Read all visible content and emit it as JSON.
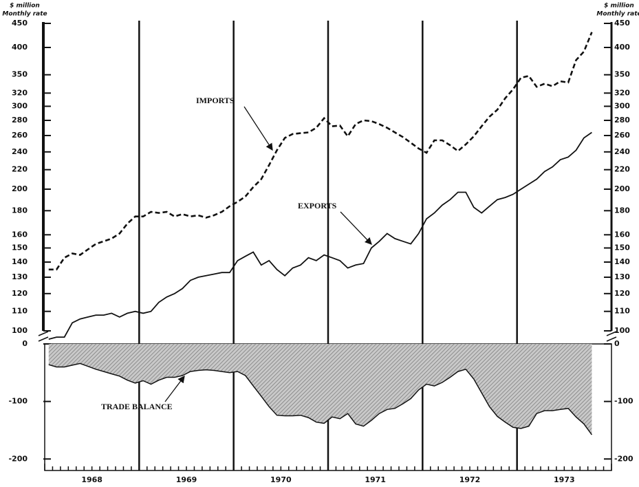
{
  "chart_data": [
    {
      "type": "line",
      "ylabel_lines": [
        "$ million",
        "Monthly rate"
      ],
      "ylog": true,
      "ylim": [
        100,
        450
      ],
      "yticks": [
        100,
        110,
        120,
        130,
        140,
        150,
        160,
        180,
        200,
        220,
        240,
        260,
        280,
        300,
        320,
        350,
        400,
        450
      ],
      "xlim": [
        1968,
        1974
      ],
      "xgrid": [
        1969,
        1970,
        1971,
        1972,
        1973
      ],
      "x": [
        1968.042,
        1968.125,
        1968.208,
        1968.292,
        1968.375,
        1968.458,
        1968.542,
        1968.625,
        1968.708,
        1968.792,
        1968.875,
        1968.958,
        1969.042,
        1969.125,
        1969.208,
        1969.292,
        1969.375,
        1969.458,
        1969.542,
        1969.625,
        1969.708,
        1969.792,
        1969.875,
        1969.958,
        1970.042,
        1970.125,
        1970.208,
        1970.292,
        1970.375,
        1970.458,
        1970.542,
        1970.625,
        1970.708,
        1970.792,
        1970.875,
        1970.958,
        1971.042,
        1971.125,
        1971.208,
        1971.292,
        1971.375,
        1971.458,
        1971.542,
        1971.625,
        1971.708,
        1971.792,
        1971.875,
        1971.958,
        1972.042,
        1972.125,
        1972.208,
        1972.292,
        1972.375,
        1972.458,
        1972.542,
        1972.625,
        1972.708,
        1972.792,
        1972.875,
        1972.958,
        1973.042,
        1973.125,
        1973.208,
        1973.292,
        1973.375,
        1973.458,
        1973.542,
        1973.625,
        1973.708,
        1973.792
      ],
      "series": [
        {
          "name": "IMPORTS",
          "color": "#111111",
          "dash": true,
          "values": [
            135,
            135,
            143,
            146,
            145,
            149,
            153,
            155,
            157,
            161,
            169,
            175,
            175,
            179,
            178,
            179,
            175,
            177,
            175,
            176,
            174,
            176,
            179,
            184,
            188,
            193,
            202,
            210,
            225,
            242,
            257,
            262,
            263,
            264,
            270,
            283,
            272,
            273,
            259,
            275,
            280,
            279,
            275,
            270,
            264,
            258,
            251,
            244,
            239,
            254,
            254,
            248,
            241,
            249,
            259,
            272,
            285,
            295,
            312,
            326,
            345,
            348,
            330,
            335,
            331,
            339,
            337,
            376,
            392,
            431
          ]
        },
        {
          "name": "EXPORTS",
          "color": "#111111",
          "dash": false,
          "values": [
            96,
            97,
            97,
            104,
            106,
            107,
            108,
            108,
            109,
            107,
            109,
            110,
            109,
            110,
            115,
            118,
            120,
            123,
            128,
            130,
            131,
            132,
            133,
            133,
            141,
            144,
            147,
            138,
            141,
            135,
            131,
            136,
            138,
            143,
            141,
            145,
            143,
            141,
            136,
            138,
            139,
            150,
            155,
            161,
            157,
            155,
            153,
            161,
            173,
            178,
            185,
            190,
            197,
            197,
            183,
            178,
            184,
            190,
            192,
            195,
            200,
            205,
            210,
            218,
            223,
            231,
            234,
            242,
            257,
            264
          ]
        }
      ]
    },
    {
      "type": "area",
      "ylim": [
        -220,
        0
      ],
      "yticks": [
        0,
        -100,
        -200
      ],
      "xlim": [
        1968,
        1974
      ],
      "xticks": [
        {
          "value": 1968.5,
          "label": "1968"
        },
        {
          "value": 1969.5,
          "label": "1969"
        },
        {
          "value": 1970.5,
          "label": "1970"
        },
        {
          "value": 1971.5,
          "label": "1971"
        },
        {
          "value": 1972.5,
          "label": "1972"
        },
        {
          "value": 1973.5,
          "label": "1973"
        }
      ],
      "x": [
        1968.042,
        1968.125,
        1968.208,
        1968.292,
        1968.375,
        1968.458,
        1968.542,
        1968.625,
        1968.708,
        1968.792,
        1968.875,
        1968.958,
        1969.042,
        1969.125,
        1969.208,
        1969.292,
        1969.375,
        1969.458,
        1969.542,
        1969.625,
        1969.708,
        1969.792,
        1969.875,
        1969.958,
        1970.042,
        1970.125,
        1970.208,
        1970.292,
        1970.375,
        1970.458,
        1970.542,
        1970.625,
        1970.708,
        1970.792,
        1970.875,
        1970.958,
        1971.042,
        1971.125,
        1971.208,
        1971.292,
        1971.375,
        1971.458,
        1971.542,
        1971.625,
        1971.708,
        1971.792,
        1971.875,
        1971.958,
        1972.042,
        1972.125,
        1972.208,
        1972.292,
        1972.375,
        1972.458,
        1972.542,
        1972.625,
        1972.708,
        1972.792,
        1972.875,
        1972.958,
        1973.042,
        1973.125,
        1973.208,
        1973.292,
        1973.375,
        1973.458,
        1973.542,
        1973.625,
        1973.708,
        1973.792
      ],
      "series": [
        {
          "name": "TRADE BALANCE",
          "color": "#8c8c8c",
          "values": [
            -36,
            -40,
            -40,
            -37,
            -34,
            -39,
            -44,
            -48,
            -52,
            -56,
            -63,
            -68,
            -64,
            -70,
            -63,
            -58,
            -58,
            -55,
            -48,
            -46,
            -45,
            -46,
            -48,
            -50,
            -48,
            -55,
            -73,
            -91,
            -109,
            -124,
            -125,
            -125,
            -124,
            -128,
            -136,
            -138,
            -127,
            -130,
            -121,
            -139,
            -143,
            -133,
            -121,
            -114,
            -112,
            -104,
            -95,
            -80,
            -70,
            -73,
            -67,
            -58,
            -48,
            -44,
            -61,
            -85,
            -109,
            -126,
            -136,
            -145,
            -147,
            -143,
            -121,
            -116,
            -116,
            -114,
            -112,
            -127,
            -139,
            -158
          ]
        }
      ]
    }
  ]
}
